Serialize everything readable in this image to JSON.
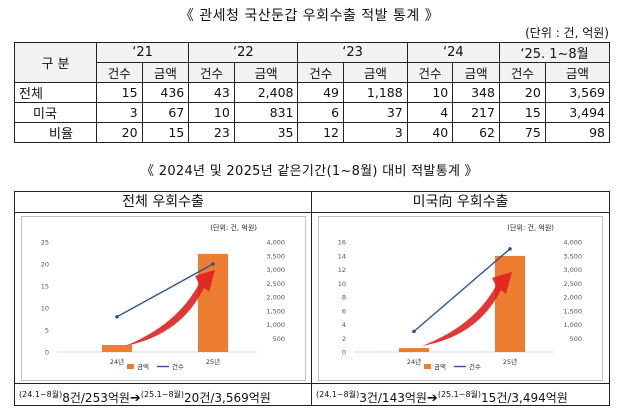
{
  "titles": {
    "main": "《 관세청 국산둔갑 우회수출 적발 통계 》",
    "unit": "(단위 : 건, 억원)",
    "compare": "《 2024년 및 2025년 같은기간(1~8월) 대비 적발통계 》"
  },
  "table": {
    "corner": "구 분",
    "years": [
      "‘21",
      "‘22",
      "‘23",
      "‘24",
      "‘25. 1~8월"
    ],
    "sub_headers": [
      "건수",
      "금액"
    ],
    "rows": [
      {
        "label": "전체",
        "values": [
          "15",
          "436",
          "43",
          "2,408",
          "49",
          "1,188",
          "10",
          "348",
          "20",
          "3,569"
        ]
      },
      {
        "label": "미국",
        "values": [
          "3",
          "67",
          "10",
          "831",
          "6",
          "37",
          "4",
          "217",
          "15",
          "3,494"
        ]
      },
      {
        "label": "비율",
        "values": [
          "20",
          "15",
          "23",
          "35",
          "12",
          "3",
          "40",
          "62",
          "75",
          "98"
        ]
      }
    ]
  },
  "panels": [
    {
      "header": "전체 우회수출",
      "footer": {
        "p1": "(24.1~8월)",
        "v1": "8건/253억원",
        "arrow": "➔",
        "p2": "(25.1~8월)",
        "v2": "20건/3,569억원"
      }
    },
    {
      "header": "미국向 우회수출",
      "footer": {
        "p1": "(24.1~8월)",
        "v1": "3건/143억원",
        "arrow": "➔",
        "p2": "(25.1~8월)",
        "v2": "15건/3,494억원"
      }
    }
  ],
  "chart_data": [
    {
      "type": "bar",
      "title": "",
      "unit_label": "(단위: 건, 억원)",
      "categories": [
        "24년",
        "25년"
      ],
      "series": [
        {
          "name": "금액",
          "kind": "bar",
          "axis": "right",
          "values": [
            253,
            3569
          ]
        },
        {
          "name": "건수",
          "kind": "line",
          "axis": "left",
          "values": [
            8,
            20
          ]
        }
      ],
      "left_axis": {
        "min": 0,
        "max": 25,
        "ticks": [
          "0",
          "5",
          "10",
          "15",
          "20",
          "25"
        ]
      },
      "right_axis": {
        "min": 0,
        "max": 4000,
        "ticks": [
          "500",
          "1,000",
          "1,500",
          "2,000",
          "2,500",
          "3,000",
          "3,500",
          "4,000"
        ]
      },
      "legend": "bottom",
      "colors": {
        "bar": "#ed7d31",
        "line": "#2e5597",
        "arrow": "#e02020"
      }
    },
    {
      "type": "bar",
      "title": "",
      "unit_label": "(단위: 건, 억원)",
      "categories": [
        "24년",
        "25년"
      ],
      "series": [
        {
          "name": "금액",
          "kind": "bar",
          "axis": "right",
          "values": [
            143,
            3494
          ]
        },
        {
          "name": "건수",
          "kind": "line",
          "axis": "left",
          "values": [
            3,
            15
          ]
        }
      ],
      "left_axis": {
        "min": 0,
        "max": 16,
        "ticks": [
          "0",
          "2",
          "4",
          "6",
          "8",
          "10",
          "12",
          "14",
          "16"
        ]
      },
      "right_axis": {
        "min": 0,
        "max": 4000,
        "ticks": [
          "500",
          "1,000",
          "1,500",
          "2,000",
          "2,500",
          "3,000",
          "3,500",
          "4,000"
        ]
      },
      "legend": "bottom",
      "colors": {
        "bar": "#ed7d31",
        "line": "#2e5597",
        "arrow": "#e02020"
      }
    }
  ]
}
